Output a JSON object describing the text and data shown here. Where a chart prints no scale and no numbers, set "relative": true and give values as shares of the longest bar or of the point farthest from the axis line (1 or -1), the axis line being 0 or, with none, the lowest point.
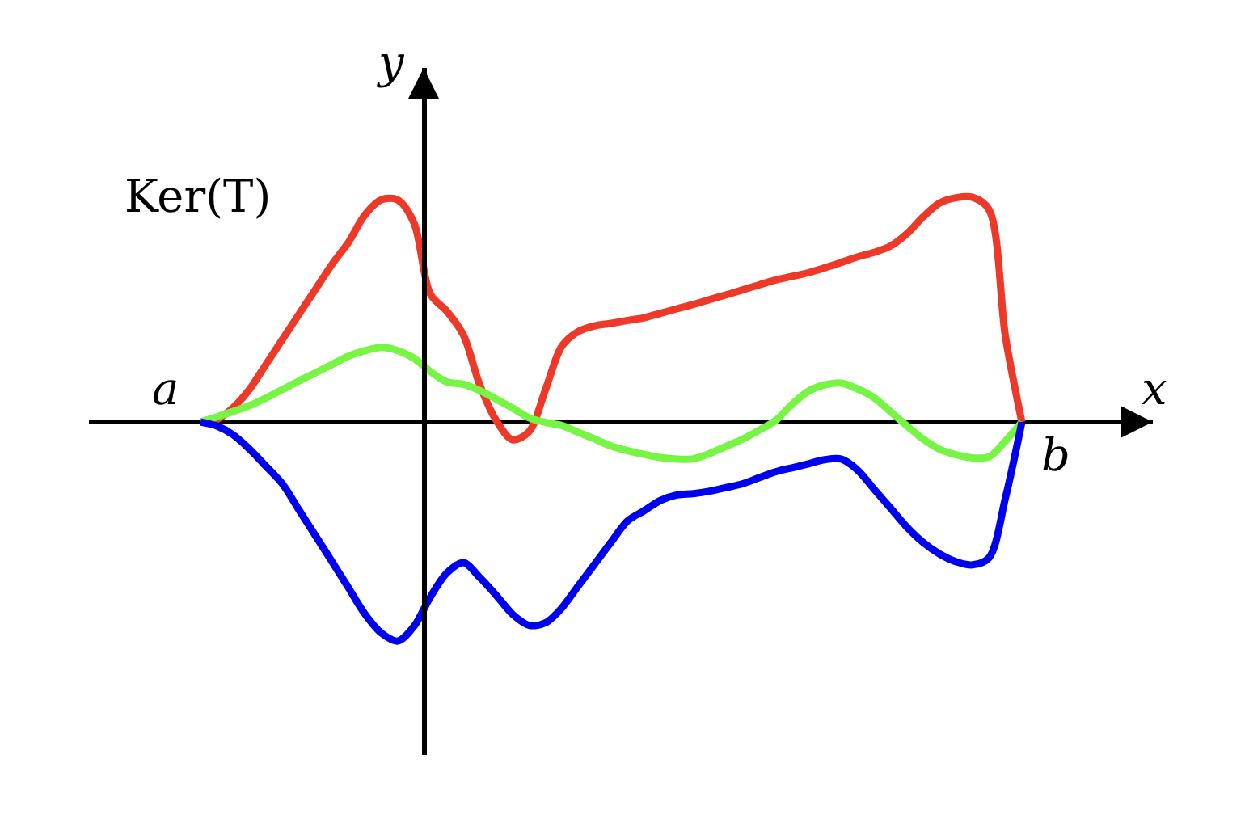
{
  "chart_data": {
    "type": "line",
    "relative": true,
    "xlabel": "x",
    "ylabel": "y",
    "annotations": [
      "Ker(T)",
      "a",
      "b"
    ],
    "legend": false,
    "marker": "none",
    "line_style": "solid",
    "categories": [
      null,
      null,
      null,
      null,
      null,
      null,
      null,
      null,
      null,
      null,
      null,
      null,
      null,
      null,
      null,
      null,
      null,
      null,
      null,
      null,
      null,
      null,
      null,
      null,
      null,
      null,
      null,
      null,
      null,
      null,
      null,
      null,
      null,
      null,
      null,
      null,
      null,
      null,
      null,
      null,
      null,
      null,
      null,
      null,
      null,
      null,
      null,
      null,
      null,
      null,
      null
    ],
    "series": [
      {
        "color": "#ee3828",
        "values": [
          0,
          0.011,
          0.065,
          0.147,
          0.258,
          0.369,
          0.48,
          0.59,
          0.701,
          0.799,
          0.921,
          0.989,
          0.989,
          0.885,
          0.568,
          0.493,
          0.388,
          0.165,
          0.007,
          -0.079,
          -0.043,
          0.144,
          0.338,
          0.403,
          0.428,
          0.439,
          0.452,
          0.464,
          0.484,
          0.504,
          0.523,
          0.545,
          0.566,
          0.588,
          0.61,
          0.632,
          0.648,
          0.664,
          0.686,
          0.71,
          0.735,
          0.755,
          0.783,
          0.838,
          0.914,
          0.975,
          0.998,
          1.0,
          0.945,
          0.379,
          0
        ]
      },
      {
        "color": "#76f544",
        "values": [
          0,
          0.023,
          0.047,
          0.073,
          0.107,
          0.145,
          0.183,
          0.219,
          0.256,
          0.293,
          0.317,
          0.332,
          0.318,
          0.283,
          0.224,
          0.178,
          0.168,
          0.14,
          0.102,
          0.062,
          0.019,
          -0.002,
          -0.016,
          -0.046,
          -0.076,
          -0.107,
          -0.128,
          -0.144,
          -0.158,
          -0.165,
          -0.164,
          -0.14,
          -0.108,
          -0.076,
          -0.037,
          0.006,
          0.078,
          0.137,
          0.165,
          0.173,
          0.147,
          0.108,
          0.046,
          -0.017,
          -0.077,
          -0.122,
          -0.146,
          -0.16,
          -0.155,
          -0.084,
          0
        ]
      },
      {
        "color": "#0000f0",
        "values": [
          0,
          -0.018,
          -0.058,
          -0.122,
          -0.198,
          -0.277,
          -0.392,
          -0.506,
          -0.621,
          -0.737,
          -0.854,
          -0.939,
          -0.975,
          -0.909,
          -0.778,
          -0.672,
          -0.626,
          -0.692,
          -0.771,
          -0.856,
          -0.905,
          -0.894,
          -0.827,
          -0.729,
          -0.632,
          -0.534,
          -0.44,
          -0.395,
          -0.349,
          -0.325,
          -0.319,
          -0.308,
          -0.292,
          -0.275,
          -0.248,
          -0.222,
          -0.204,
          -0.186,
          -0.168,
          -0.165,
          -0.214,
          -0.299,
          -0.383,
          -0.468,
          -0.537,
          -0.588,
          -0.622,
          -0.636,
          -0.604,
          -0.337,
          0
        ]
      }
    ]
  }
}
